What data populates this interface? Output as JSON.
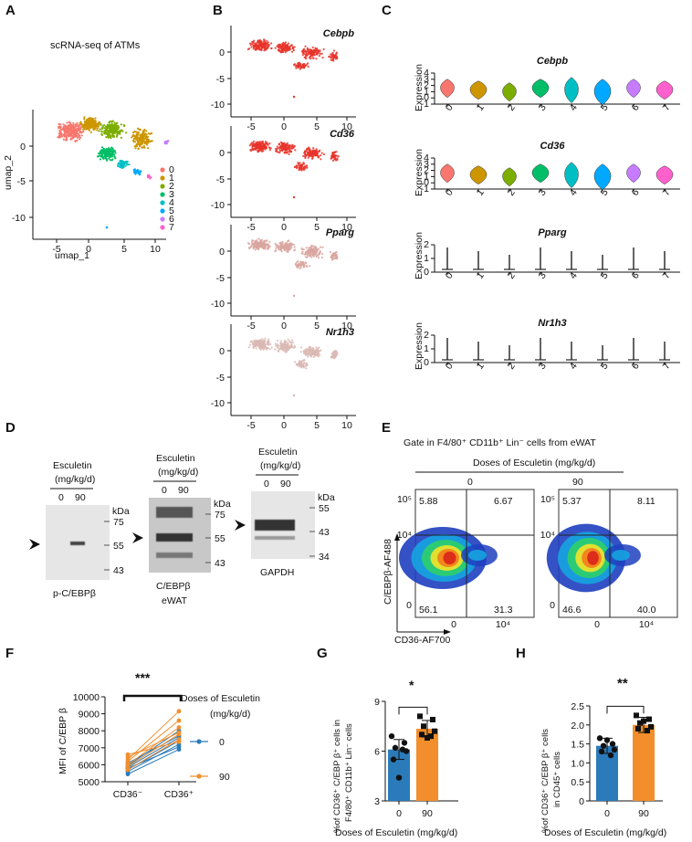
{
  "panels": {
    "A": {
      "label": "A",
      "title": "scRNA-seq of ATMs",
      "xlabel": "umap_1",
      "ylabel": "umap_2",
      "xticks": [
        "-5",
        "0",
        "5",
        "10"
      ],
      "yticks": [
        "0",
        "-5",
        "-10"
      ],
      "legend": [
        "0",
        "1",
        "2",
        "3",
        "4",
        "5",
        "6",
        "7"
      ],
      "cluster_colors": [
        "#F8766D",
        "#CD9600",
        "#7CAE00",
        "#00BE67",
        "#00BFC4",
        "#00A9FF",
        "#C77CFF",
        "#FF61CC"
      ]
    },
    "B": {
      "label": "B",
      "genes": [
        "Cebpb",
        "Cd36",
        "Pparg",
        "Nr1h3"
      ],
      "xticks": [
        "-5",
        "0",
        "5",
        "10"
      ],
      "yticks": [
        "0",
        "-5",
        "-10"
      ],
      "colors": [
        "#e8342a",
        "#e8342a",
        "#d9a6a0",
        "#d9b8b4"
      ]
    },
    "C": {
      "label": "C",
      "ylabel": "Expression",
      "clusters": [
        "0",
        "1",
        "2",
        "3",
        "4",
        "5",
        "6",
        "7"
      ],
      "plots": [
        {
          "gene": "Cebpb",
          "yticks": [
            "4",
            "3",
            "2",
            "1",
            "0",
            "-1"
          ]
        },
        {
          "gene": "Cd36",
          "yticks": [
            "4",
            "3",
            "2",
            "1",
            "0",
            "-1"
          ]
        },
        {
          "gene": "Pparg",
          "yticks": [
            "2",
            "1",
            "0"
          ]
        },
        {
          "gene": "Nr1h3",
          "yticks": [
            "2",
            "1",
            "0"
          ]
        }
      ]
    },
    "D": {
      "label": "D",
      "header": "Esculetin",
      "units": "(mg/kg/d)",
      "lanes": [
        "0",
        "90"
      ],
      "kda": "kDa",
      "blots": [
        {
          "name": "p-C/EBPβ",
          "markers": [
            "75",
            "55",
            "43"
          ]
        },
        {
          "name": "C/EBPβ",
          "sub": "eWAT",
          "markers": [
            "75",
            "55",
            "43"
          ]
        },
        {
          "name": "GAPDH",
          "markers": [
            "55",
            "43",
            "34"
          ]
        }
      ]
    },
    "E": {
      "label": "E",
      "title": "Gate in F4/80⁺ CD11b⁺ Lin⁻ cells from eWAT",
      "subtitle": "Doses of Esculetin (mg/kg/d)",
      "doses": [
        "0",
        "90"
      ],
      "ylabel": "C/EBPβ-AF488",
      "xlabel": "CD36-AF700",
      "yticks": [
        "10⁵",
        "10⁴",
        "0"
      ],
      "xticks": [
        "0",
        "10⁴"
      ],
      "quadrants": [
        {
          "ul": "5.88",
          "ur": "6.67",
          "ll": "56.1",
          "lr": "31.3"
        },
        {
          "ul": "5.37",
          "ur": "8.11",
          "ll": "46.6",
          "lr": "40.0"
        }
      ]
    },
    "F": {
      "label": "F",
      "significance": "***",
      "legend_title_1": "Doses of Esculetin",
      "legend_title_2": "(mg/kg/d)",
      "ylabel": "MFI of C/EBP β"
    },
    "G": {
      "label": "G",
      "significance": "*",
      "ylabel_1": "%of CD36⁺ C/EBP β⁺ cells in",
      "ylabel_2": "F4/80⁺ CD11b⁺ Lin⁻ cells",
      "xlabel": "Doses of Esculetin (mg/kg/d)"
    },
    "H": {
      "label": "H",
      "significance": "**",
      "ylabel_1": "%of CD36⁺ C/EBP β⁺ cells",
      "ylabel_2": "in CD45⁺ cells",
      "xlabel": "Doses of Esculetin (mg/kg/d)"
    }
  },
  "chart_data": [
    {
      "type": "line",
      "panel": "F",
      "x": [
        "CD36⁻",
        "CD36⁺"
      ],
      "ylim": [
        5000,
        10000
      ],
      "yticks": [
        5000,
        6000,
        7000,
        8000,
        9000,
        10000
      ],
      "series": [
        {
          "name": "0",
          "color": "#2b7bba",
          "pairs": [
            [
              5450,
              6900
            ],
            [
              5600,
              7200
            ],
            [
              5700,
              7400
            ],
            [
              5800,
              7050
            ],
            [
              5850,
              7600
            ],
            [
              5950,
              8000
            ],
            [
              6100,
              7700
            ]
          ]
        },
        {
          "name": "90",
          "color": "#f28e2b",
          "pairs": [
            [
              5700,
              7500
            ],
            [
              5900,
              7800
            ],
            [
              6000,
              8200
            ],
            [
              6200,
              8600
            ],
            [
              6300,
              9150
            ],
            [
              6450,
              7900
            ],
            [
              6600,
              7350
            ]
          ]
        }
      ]
    },
    {
      "type": "bar",
      "panel": "G",
      "categories": [
        "0",
        "90"
      ],
      "values": [
        6.1,
        7.35
      ],
      "errors": [
        0.6,
        0.5
      ],
      "points": [
        [
          6.9,
          6.5,
          6.2,
          6.0,
          5.5,
          6.1,
          4.4
        ],
        [
          8.1,
          7.9,
          7.5,
          7.2,
          7.0,
          6.9,
          6.8
        ]
      ],
      "colors": [
        "#2b7bba",
        "#f28e2b"
      ],
      "ylim": [
        3,
        9
      ],
      "yticks": [
        3,
        6,
        9
      ],
      "xlabel": "Doses of Esculetin (mg/kg/d)"
    },
    {
      "type": "bar",
      "panel": "H",
      "categories": [
        "0",
        "90"
      ],
      "values": [
        1.45,
        2.0
      ],
      "errors": [
        0.2,
        0.2
      ],
      "points": [
        [
          1.65,
          1.5,
          1.45,
          1.35,
          1.3,
          1.2,
          1.6
        ],
        [
          2.25,
          2.15,
          2.05,
          1.95,
          1.9,
          1.85,
          2.1
        ]
      ],
      "colors": [
        "#2b7bba",
        "#f28e2b"
      ],
      "ylim": [
        0,
        2.5
      ],
      "yticks": [
        0,
        0.5,
        1.0,
        1.5,
        2.0,
        2.5
      ],
      "xlabel": "Doses of Esculetin (mg/kg/d)"
    }
  ]
}
